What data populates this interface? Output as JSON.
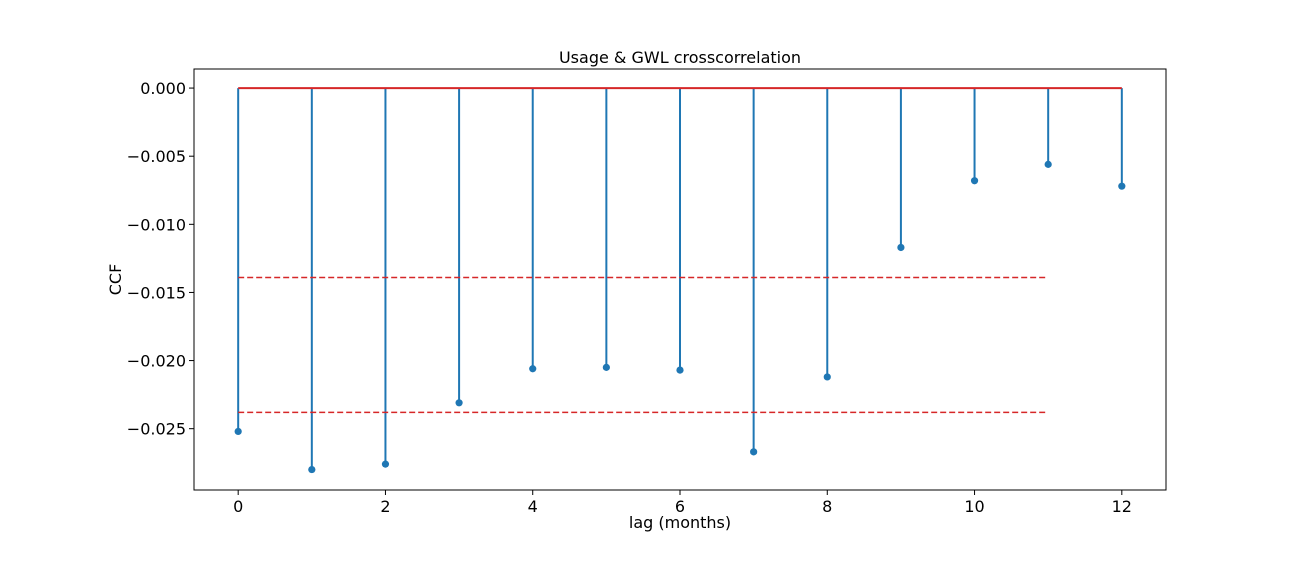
{
  "chart_data": {
    "type": "stem",
    "title": "Usage & GWL crosscorrelation",
    "xlabel": "lag (months)",
    "ylabel": "CCF",
    "x": [
      0,
      1,
      2,
      3,
      4,
      5,
      6,
      7,
      8,
      9,
      10,
      11,
      12
    ],
    "values": [
      -0.0252,
      -0.028,
      -0.0276,
      -0.0231,
      -0.0206,
      -0.0205,
      -0.0207,
      -0.0267,
      -0.0212,
      -0.0117,
      -0.0068,
      -0.0056,
      -0.0072
    ],
    "xlim": [
      -0.6,
      12.6
    ],
    "ylim": [
      -0.0295,
      0.0014
    ],
    "xticks": [
      0,
      2,
      4,
      6,
      8,
      10,
      12
    ],
    "xtick_labels": [
      "0",
      "2",
      "4",
      "6",
      "8",
      "10",
      "12"
    ],
    "yticks": [
      0.0,
      -0.005,
      -0.01,
      -0.015,
      -0.02,
      -0.025
    ],
    "ytick_labels": [
      "0.000",
      "−0.005",
      "−0.010",
      "−0.015",
      "−0.020",
      "−0.025"
    ],
    "reference_lines": [
      {
        "y": -0.0139,
        "x_range": [
          0,
          11
        ],
        "style": "dashed",
        "color": "#d62728"
      },
      {
        "y": -0.0238,
        "x_range": [
          0,
          11
        ],
        "style": "dashed",
        "color": "#d62728"
      }
    ],
    "baseline": {
      "y": 0.0,
      "x_range": [
        0,
        12
      ],
      "color": "#d62728"
    },
    "stem_color": "#1f77b4",
    "grid": false,
    "legend": "none"
  }
}
